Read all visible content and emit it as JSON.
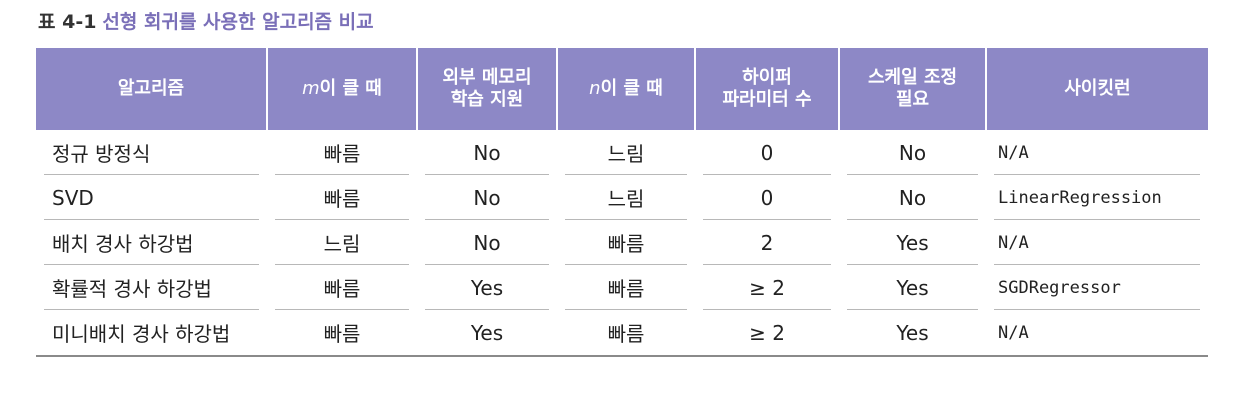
{
  "caption": {
    "label": "표 4-1",
    "title": "선형 회귀를 사용한 알고리즘 비교"
  },
  "table": {
    "headers": {
      "algorithm": "알고리즘",
      "m_var": "m",
      "m_rest": "이 클 때",
      "outofcore_line1": "외부 메모리",
      "outofcore_line2": "학습 지원",
      "n_var": "n",
      "n_rest": "이 클 때",
      "hyper_line1": "하이퍼",
      "hyper_line2": "파라미터 수",
      "scaling_line1": "스케일 조정",
      "scaling_line2": "필요",
      "sklearn": "사이킷런"
    },
    "rows": [
      {
        "algorithm": "정규 방정식",
        "large_m": "빠름",
        "out_of_core": "No",
        "large_n": "느림",
        "hyperparams": "0",
        "scaling": "No",
        "sklearn": "N/A"
      },
      {
        "algorithm": "SVD",
        "large_m": "빠름",
        "out_of_core": "No",
        "large_n": "느림",
        "hyperparams": "0",
        "scaling": "No",
        "sklearn": "LinearRegression"
      },
      {
        "algorithm": "배치 경사 하강법",
        "large_m": "느림",
        "out_of_core": "No",
        "large_n": "빠름",
        "hyperparams": "2",
        "scaling": "Yes",
        "sklearn": "N/A"
      },
      {
        "algorithm": "확률적 경사 하강법",
        "large_m": "빠름",
        "out_of_core": "Yes",
        "large_n": "빠름",
        "hyperparams": "≥ 2",
        "scaling": "Yes",
        "sklearn": "SGDRegressor"
      },
      {
        "algorithm": "미니배치 경사 하강법",
        "large_m": "빠름",
        "out_of_core": "Yes",
        "large_n": "빠름",
        "hyperparams": "≥ 2",
        "scaling": "Yes",
        "sklearn": "N/A"
      }
    ]
  }
}
